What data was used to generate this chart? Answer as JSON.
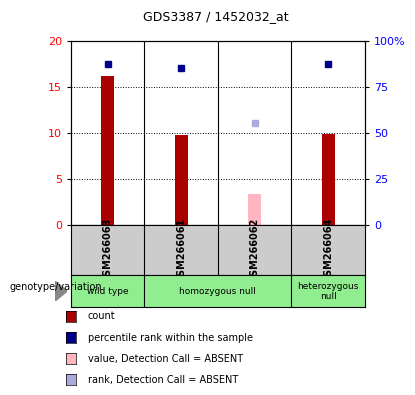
{
  "title": "GDS3387 / 1452032_at",
  "samples": [
    "GSM266063",
    "GSM266061",
    "GSM266062",
    "GSM266064"
  ],
  "bar_values": [
    16.2,
    9.8,
    null,
    9.9
  ],
  "bar_absent_values": [
    null,
    null,
    3.3,
    null
  ],
  "dot_values": [
    17.5,
    17.0,
    null,
    17.5
  ],
  "dot_absent_values": [
    null,
    null,
    11.0,
    null
  ],
  "bar_color": "#aa0000",
  "bar_absent_color": "#ffb6c1",
  "dot_color": "#00008b",
  "dot_absent_color": "#aaaadd",
  "ylim_left": [
    0,
    20
  ],
  "ylim_right": [
    0,
    100
  ],
  "yticks_left": [
    0,
    5,
    10,
    15,
    20
  ],
  "yticks_right": [
    0,
    25,
    50,
    75,
    100
  ],
  "ytick_labels_right": [
    "0",
    "25",
    "50",
    "75",
    "100%"
  ],
  "legend_items": [
    {
      "color": "#aa0000",
      "label": "count"
    },
    {
      "color": "#00008b",
      "label": "percentile rank within the sample"
    },
    {
      "color": "#ffb6c1",
      "label": "value, Detection Call = ABSENT"
    },
    {
      "color": "#aaaadd",
      "label": "rank, Detection Call = ABSENT"
    }
  ],
  "genotype_label": "genotype/variation",
  "sample_area_color": "#cccccc",
  "green_color": "#90ee90"
}
